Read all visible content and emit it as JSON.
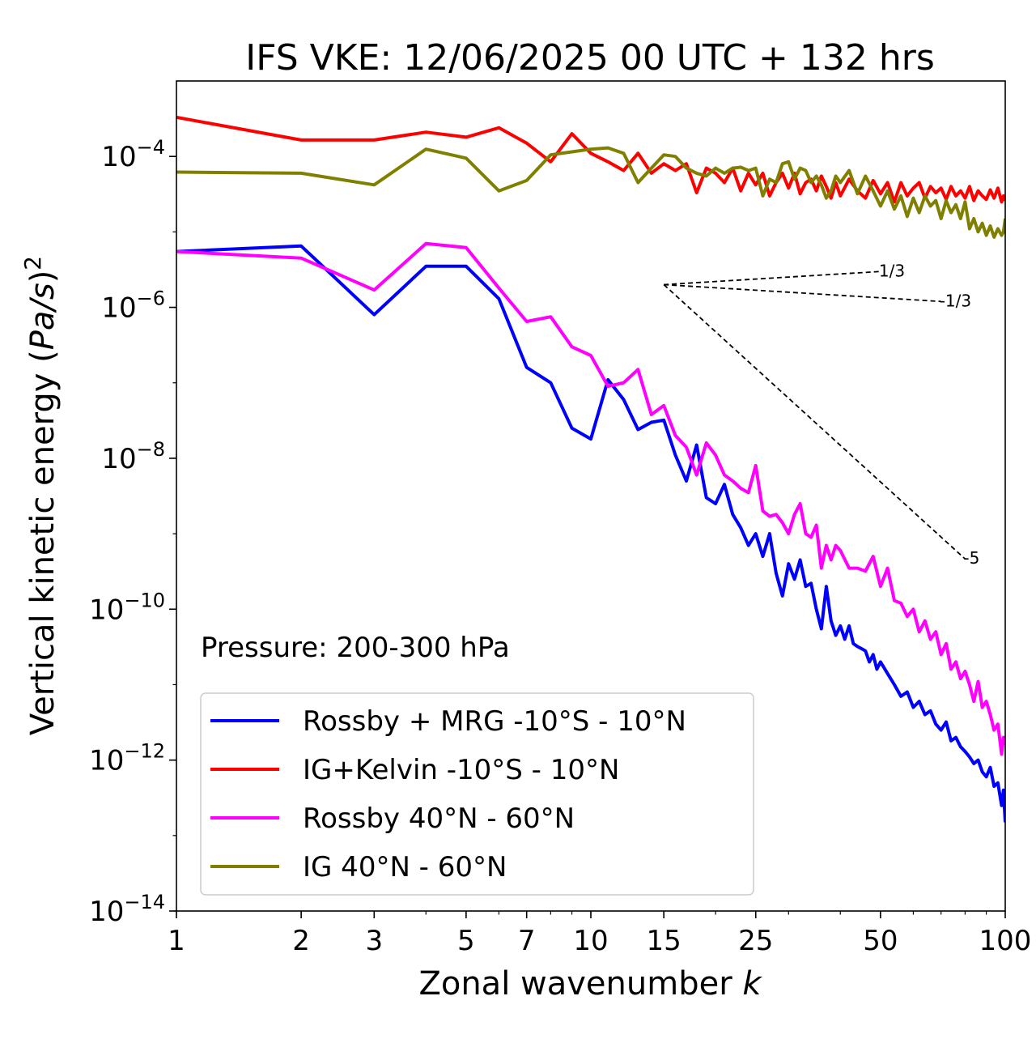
{
  "chart_data": {
    "type": "line",
    "title": "IFS VKE: 12/06/2025 00 UTC + 132 hrs",
    "xlabel_main": "Zonal wavenumber ",
    "xlabel_var": "k",
    "ylabel_main": "Vertical kinetic energy (",
    "ylabel_var": "Pa/s",
    "ylabel_close": ")",
    "ylabel_exp": "2",
    "x_scale": "log",
    "y_scale": "log",
    "xlim": [
      1,
      100
    ],
    "ylim": [
      1e-14,
      0.001
    ],
    "x_ticks": [
      1,
      2,
      3,
      5,
      7,
      10,
      15,
      25,
      50,
      100
    ],
    "x_tick_labels": [
      "1",
      "2",
      "3",
      "5",
      "7",
      "10",
      "15",
      "25",
      "50",
      "100"
    ],
    "y_ticks": [
      -4,
      -6,
      -8,
      -10,
      -12,
      -14
    ],
    "y_tick_base": "10",
    "y_tick_exps": [
      "−4",
      "−6",
      "−8",
      "−10",
      "−12",
      "−14"
    ],
    "annotation": "Pressure: 200-300 hPa",
    "legend_position": "lower-left",
    "reference_slopes": [
      {
        "label": "1/3",
        "slope": 0.3333,
        "x_start": 15,
        "x_end": 50,
        "y_start": 2e-06
      },
      {
        "label": "-1/3",
        "slope": -0.3333,
        "x_start": 15,
        "x_end": 70,
        "y_start": 2e-06
      },
      {
        "label": "-5",
        "slope": -5,
        "x_start": 15,
        "x_end": 80,
        "y_start": 2e-06
      }
    ],
    "series": [
      {
        "name": "Rossby + MRG -10°S - 10°N",
        "color": "#0000ff",
        "points": [
          [
            1,
            5.5e-06
          ],
          [
            2,
            6.5e-06
          ],
          [
            3,
            8e-07
          ],
          [
            4,
            3.5e-06
          ],
          [
            5,
            3.5e-06
          ],
          [
            6,
            1.3e-06
          ],
          [
            7,
            1.6e-07
          ],
          [
            8,
            1e-07
          ],
          [
            9,
            2.5e-08
          ],
          [
            10,
            1.8e-08
          ],
          [
            11,
            1.1e-07
          ],
          [
            12,
            6e-08
          ],
          [
            13,
            2.4e-08
          ],
          [
            14,
            3e-08
          ],
          [
            15,
            3.2e-08
          ],
          [
            16,
            1.1e-08
          ],
          [
            17,
            5e-09
          ],
          [
            18,
            1.5e-08
          ],
          [
            19,
            3e-09
          ],
          [
            20,
            2.5e-09
          ],
          [
            21,
            4.5e-09
          ],
          [
            22,
            1.8e-09
          ],
          [
            23,
            1.2e-09
          ],
          [
            24,
            7e-10
          ],
          [
            25,
            1e-09
          ],
          [
            26,
            5e-10
          ],
          [
            27,
            1e-09
          ],
          [
            28,
            3e-10
          ],
          [
            29,
            1.5e-10
          ],
          [
            30,
            4e-10
          ],
          [
            31,
            2.5e-10
          ],
          [
            32,
            4.5e-10
          ],
          [
            33,
            2e-10
          ],
          [
            34,
            2.2e-10
          ],
          [
            35,
            1e-10
          ],
          [
            36,
            5.5e-11
          ],
          [
            37,
            2e-10
          ],
          [
            38,
            7e-11
          ],
          [
            39,
            4.5e-11
          ],
          [
            40,
            6e-11
          ],
          [
            41,
            4e-11
          ],
          [
            42,
            6e-11
          ],
          [
            43,
            3.5e-11
          ],
          [
            44,
            3.2e-11
          ],
          [
            45,
            3e-11
          ],
          [
            46,
            2.8e-11
          ],
          [
            47,
            2e-11
          ],
          [
            48,
            2.5e-11
          ],
          [
            49,
            1.6e-11
          ],
          [
            50,
            2e-11
          ],
          [
            52,
            1.4e-11
          ],
          [
            54,
            1e-11
          ],
          [
            56,
            7e-12
          ],
          [
            58,
            8e-12
          ],
          [
            60,
            5e-12
          ],
          [
            62,
            6e-12
          ],
          [
            64,
            4e-12
          ],
          [
            66,
            4.5e-12
          ],
          [
            68,
            3e-12
          ],
          [
            70,
            2.5e-12
          ],
          [
            72,
            3.2e-12
          ],
          [
            74,
            1.8e-12
          ],
          [
            76,
            2e-12
          ],
          [
            78,
            1.5e-12
          ],
          [
            80,
            1.3e-12
          ],
          [
            82,
            1.1e-12
          ],
          [
            84,
            9e-13
          ],
          [
            86,
            1e-12
          ],
          [
            88,
            7e-13
          ],
          [
            90,
            6e-13
          ],
          [
            92,
            8e-13
          ],
          [
            94,
            4.5e-13
          ],
          [
            96,
            5e-13
          ],
          [
            98,
            2.5e-13
          ],
          [
            99,
            4e-13
          ],
          [
            100,
            1.5e-13
          ]
        ]
      },
      {
        "name": "IG+Kelvin -10°S - 10°N",
        "color": "#ff0000",
        "points": [
          [
            1,
            0.00033
          ],
          [
            2,
            0.000165
          ],
          [
            3,
            0.000165
          ],
          [
            4,
            0.00021
          ],
          [
            5,
            0.00018
          ],
          [
            6,
            0.00024
          ],
          [
            7,
            0.00015
          ],
          [
            8,
            8.5e-05
          ],
          [
            9,
            0.0002
          ],
          [
            10,
            0.00011
          ],
          [
            11,
            8.5e-05
          ],
          [
            12,
            6.5e-05
          ],
          [
            13,
            0.00011
          ],
          [
            14,
            6e-05
          ],
          [
            15,
            8e-05
          ],
          [
            16,
            6.5e-05
          ],
          [
            17,
            8e-05
          ],
          [
            18,
            3.3e-05
          ],
          [
            19,
            7e-05
          ],
          [
            20,
            6e-05
          ],
          [
            21,
            4.5e-05
          ],
          [
            22,
            7e-05
          ],
          [
            23,
            3.5e-05
          ],
          [
            24,
            6e-05
          ],
          [
            25,
            4.2e-05
          ],
          [
            26,
            6e-05
          ],
          [
            27,
            3e-05
          ],
          [
            28,
            4.5e-05
          ],
          [
            29,
            6e-05
          ],
          [
            30,
            3.8e-05
          ],
          [
            31,
            6e-05
          ],
          [
            32,
            3.2e-05
          ],
          [
            33,
            4.5e-05
          ],
          [
            34,
            5e-05
          ],
          [
            35,
            3.5e-05
          ],
          [
            36,
            5.5e-05
          ],
          [
            37,
            4e-05
          ],
          [
            38,
            2.8e-05
          ],
          [
            39,
            4.5e-05
          ],
          [
            40,
            3e-05
          ],
          [
            42,
            5e-05
          ],
          [
            44,
            3.5e-05
          ],
          [
            46,
            2.8e-05
          ],
          [
            48,
            4.8e-05
          ],
          [
            50,
            3.2e-05
          ],
          [
            52,
            4.5e-05
          ],
          [
            54,
            2.5e-05
          ],
          [
            56,
            4.5e-05
          ],
          [
            58,
            3e-05
          ],
          [
            60,
            3.8e-05
          ],
          [
            62,
            4.5e-05
          ],
          [
            64,
            2.8e-05
          ],
          [
            66,
            4e-05
          ],
          [
            68,
            3.3e-05
          ],
          [
            70,
            3.8e-05
          ],
          [
            72,
            2.7e-05
          ],
          [
            74,
            4e-05
          ],
          [
            76,
            3e-05
          ],
          [
            78,
            3.5e-05
          ],
          [
            80,
            2.8e-05
          ],
          [
            82,
            4e-05
          ],
          [
            84,
            2.6e-05
          ],
          [
            86,
            3.5e-05
          ],
          [
            88,
            3e-05
          ],
          [
            90,
            2.7e-05
          ],
          [
            92,
            3.6e-05
          ],
          [
            94,
            2.8e-05
          ],
          [
            96,
            3.8e-05
          ],
          [
            98,
            2.5e-05
          ],
          [
            99,
            3e-05
          ],
          [
            100,
            2.6e-05
          ]
        ]
      },
      {
        "name": "Rossby 40°N - 60°N",
        "color": "#ff00ff",
        "points": [
          [
            1,
            5.5e-06
          ],
          [
            2,
            4.5e-06
          ],
          [
            3,
            1.7e-06
          ],
          [
            4,
            7e-06
          ],
          [
            5,
            6.2e-06
          ],
          [
            6,
            1.8e-06
          ],
          [
            7,
            6.5e-07
          ],
          [
            8,
            7.5e-07
          ],
          [
            9,
            3e-07
          ],
          [
            10,
            2.3e-07
          ],
          [
            11,
            9e-08
          ],
          [
            12,
            1e-07
          ],
          [
            13,
            1.5e-07
          ],
          [
            14,
            3.8e-08
          ],
          [
            15,
            5e-08
          ],
          [
            16,
            2e-08
          ],
          [
            17,
            1.4e-08
          ],
          [
            18,
            6e-09
          ],
          [
            19,
            1.6e-08
          ],
          [
            20,
            1.1e-08
          ],
          [
            21,
            6e-09
          ],
          [
            22,
            5e-09
          ],
          [
            23,
            4e-09
          ],
          [
            24,
            3.5e-09
          ],
          [
            25,
            8e-09
          ],
          [
            26,
            2e-09
          ],
          [
            27,
            1.7e-09
          ],
          [
            28,
            1.8e-09
          ],
          [
            29,
            1.4e-09
          ],
          [
            30,
            1e-09
          ],
          [
            31,
            1.8e-09
          ],
          [
            32,
            2.5e-09
          ],
          [
            33,
            1e-09
          ],
          [
            34,
            9e-10
          ],
          [
            35,
            1.3e-09
          ],
          [
            36,
            3.5e-10
          ],
          [
            37,
            7e-10
          ],
          [
            38,
            4.5e-10
          ],
          [
            39,
            7e-10
          ],
          [
            40,
            6e-10
          ],
          [
            42,
            3.5e-10
          ],
          [
            44,
            3.5e-10
          ],
          [
            46,
            3.2e-10
          ],
          [
            48,
            5e-10
          ],
          [
            50,
            2e-10
          ],
          [
            52,
            3.5e-10
          ],
          [
            54,
            1.3e-10
          ],
          [
            56,
            1.2e-10
          ],
          [
            58,
            8e-11
          ],
          [
            60,
            1e-10
          ],
          [
            62,
            5e-11
          ],
          [
            64,
            7e-11
          ],
          [
            66,
            4e-11
          ],
          [
            68,
            5e-11
          ],
          [
            70,
            2.5e-11
          ],
          [
            72,
            3.5e-11
          ],
          [
            74,
            1.6e-11
          ],
          [
            76,
            2e-11
          ],
          [
            78,
            1.2e-11
          ],
          [
            80,
            1.5e-11
          ],
          [
            82,
            1e-11
          ],
          [
            84,
            6e-12
          ],
          [
            86,
            1.1e-11
          ],
          [
            88,
            5e-12
          ],
          [
            90,
            6e-12
          ],
          [
            92,
            4e-12
          ],
          [
            94,
            2.5e-12
          ],
          [
            96,
            3e-12
          ],
          [
            98,
            1.2e-12
          ],
          [
            99,
            2e-12
          ],
          [
            100,
            1.6e-12
          ]
        ]
      },
      {
        "name": "IG 40°N - 60°N",
        "color": "#808000",
        "points": [
          [
            1,
            6.2e-05
          ],
          [
            2,
            6e-05
          ],
          [
            3,
            4.2e-05
          ],
          [
            4,
            0.000125
          ],
          [
            5,
            9.5e-05
          ],
          [
            6,
            3.5e-05
          ],
          [
            7,
            4.8e-05
          ],
          [
            8,
            0.000105
          ],
          [
            9,
            0.000115
          ],
          [
            10,
            0.000125
          ],
          [
            11,
            0.00013
          ],
          [
            12,
            0.00011
          ],
          [
            13,
            4.5e-05
          ],
          [
            14,
            7e-05
          ],
          [
            15,
            0.000105
          ],
          [
            16,
            0.0001
          ],
          [
            17,
            7e-05
          ],
          [
            18,
            6e-05
          ],
          [
            19,
            5.5e-05
          ],
          [
            20,
            7e-05
          ],
          [
            21,
            6e-05
          ],
          [
            22,
            7e-05
          ],
          [
            23,
            7.2e-05
          ],
          [
            24,
            6.5e-05
          ],
          [
            25,
            7e-05
          ],
          [
            26,
            3e-05
          ],
          [
            27,
            5e-05
          ],
          [
            28,
            4.5e-05
          ],
          [
            29,
            8e-05
          ],
          [
            30,
            8.5e-05
          ],
          [
            31,
            5e-05
          ],
          [
            32,
            7e-05
          ],
          [
            33,
            6.5e-05
          ],
          [
            34,
            4.5e-05
          ],
          [
            35,
            5.5e-05
          ],
          [
            36,
            4.2e-05
          ],
          [
            37,
            2.8e-05
          ],
          [
            38,
            3.5e-05
          ],
          [
            39,
            5.5e-05
          ],
          [
            40,
            4.5e-05
          ],
          [
            42,
            6.5e-05
          ],
          [
            44,
            3.2e-05
          ],
          [
            46,
            5.5e-05
          ],
          [
            48,
            3.5e-05
          ],
          [
            50,
            2.2e-05
          ],
          [
            52,
            3.5e-05
          ],
          [
            54,
            2e-05
          ],
          [
            56,
            3e-05
          ],
          [
            58,
            1.6e-05
          ],
          [
            60,
            2.8e-05
          ],
          [
            62,
            1.8e-05
          ],
          [
            64,
            3e-05
          ],
          [
            66,
            2.2e-05
          ],
          [
            68,
            2.6e-05
          ],
          [
            70,
            1.5e-05
          ],
          [
            72,
            2.6e-05
          ],
          [
            74,
            1.8e-05
          ],
          [
            76,
            2.3e-05
          ],
          [
            78,
            1.5e-05
          ],
          [
            80,
            2.5e-05
          ],
          [
            82,
            1.1e-05
          ],
          [
            84,
            1.5e-05
          ],
          [
            86,
            1e-05
          ],
          [
            88,
            1.3e-05
          ],
          [
            90,
            9e-06
          ],
          [
            92,
            1.2e-05
          ],
          [
            94,
            8.5e-06
          ],
          [
            96,
            1.1e-05
          ],
          [
            98,
            9e-06
          ],
          [
            99,
            1e-05
          ],
          [
            100,
            1.5e-05
          ]
        ]
      }
    ]
  }
}
